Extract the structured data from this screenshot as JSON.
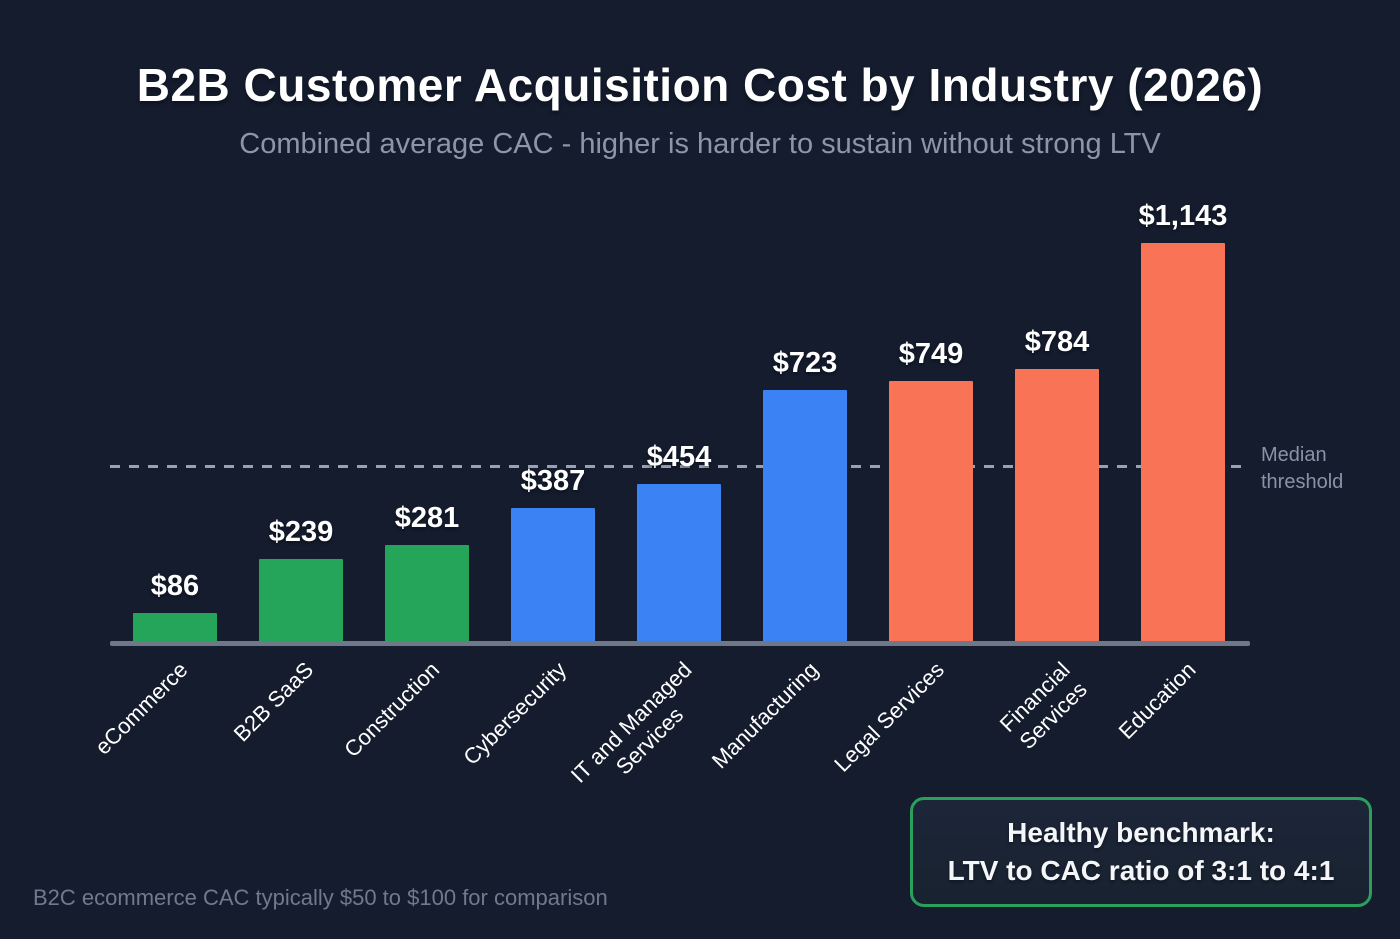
{
  "title": "B2B Customer Acquisition Cost by Industry (2026)",
  "subtitle": "Combined average CAC - higher is harder to sustain without strong LTV",
  "footnote": "B2C ecommerce CAC typically $50 to $100 for comparison",
  "benchmark_box": {
    "line1": "Healthy benchmark:",
    "line2": "LTV to CAC ratio of 3:1 to 4:1"
  },
  "threshold": {
    "label_line1": "Median",
    "label_line2": "threshold",
    "value": 500
  },
  "colors": {
    "background": "#141c2e",
    "green_bar": "#25a55a",
    "blue_bar": "#3b82f4",
    "orange_bar": "#f97357",
    "axis": "#6e7889",
    "threshold_dash": "#9aa2b1",
    "muted_text": "#8d96a8",
    "benchmark_border": "#2ba05c",
    "value_label": "#ffffff"
  },
  "chart_data": {
    "type": "bar",
    "title": "B2B Customer Acquisition Cost by Industry (2026)",
    "subtitle": "Combined average CAC - higher is harder to sustain without strong LTV",
    "categories": [
      "eCommerce",
      "B2B SaaS",
      "Construction",
      "Cybersecurity",
      "IT and Managed\nServices",
      "Manufacturing",
      "Legal Services",
      "Financial\nServices",
      "Education"
    ],
    "values": [
      86,
      239,
      281,
      387,
      454,
      723,
      749,
      784,
      1143
    ],
    "value_labels": [
      "$86",
      "$239",
      "$281",
      "$387",
      "$454",
      "$723",
      "$749",
      "$784",
      "$1,143"
    ],
    "bar_colors": [
      "#25a55a",
      "#25a55a",
      "#25a55a",
      "#3b82f4",
      "#3b82f4",
      "#3b82f4",
      "#f97357",
      "#f97357",
      "#f97357"
    ],
    "xlabel": "",
    "ylabel": "",
    "ylim": [
      0,
      1143
    ],
    "grid": false,
    "legend_position": "none",
    "threshold_line": {
      "value": 500,
      "label": "Median threshold",
      "style": "dashed"
    },
    "annotations": [
      "Healthy benchmark: LTV to CAC ratio of 3:1 to 4:1",
      "B2C ecommerce CAC typically $50 to $100 for comparison"
    ]
  }
}
